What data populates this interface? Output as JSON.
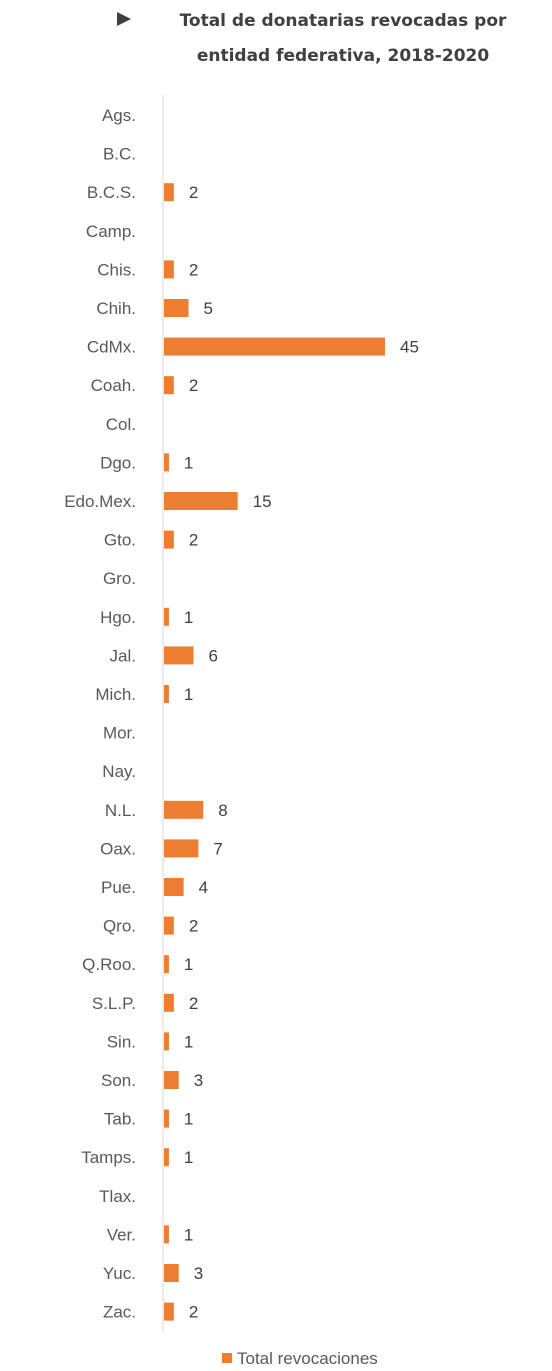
{
  "chart_data": {
    "type": "bar",
    "orientation": "horizontal",
    "title": "Total de donatarias revocadas por entidad federativa, 2018-2020",
    "title_lines": [
      "Total de donatarias revocadas por",
      "entidad federativa, 2018-2020"
    ],
    "categories": [
      "Ags.",
      "B.C.",
      "B.C.S.",
      "Camp.",
      "Chis.",
      "Chih.",
      "CdMx.",
      "Coah.",
      "Col.",
      "Dgo.",
      "Edo.Mex.",
      "Gto.",
      "Gro.",
      "Hgo.",
      "Jal.",
      "Mich.",
      "Mor.",
      "Nay.",
      "N.L.",
      "Oax.",
      "Pue.",
      "Qro.",
      "Q.Roo.",
      "S.L.P.",
      "Sin.",
      "Son.",
      "Tab.",
      "Tamps.",
      "Tlax.",
      "Ver.",
      "Yuc.",
      "Zac."
    ],
    "series": [
      {
        "name": "Total revocaciones",
        "values": [
          0,
          0,
          2,
          0,
          2,
          5,
          45,
          2,
          0,
          1,
          15,
          2,
          0,
          1,
          6,
          1,
          0,
          0,
          8,
          7,
          4,
          2,
          1,
          2,
          1,
          3,
          1,
          1,
          0,
          1,
          3,
          2
        ]
      }
    ],
    "xlim": [
      0,
      45
    ],
    "grid": false,
    "legend_position": "bottom",
    "colors": {
      "bar": "#ed7d31",
      "axis": "#d9d9d9",
      "text": "#595959",
      "title": "#404040"
    }
  }
}
